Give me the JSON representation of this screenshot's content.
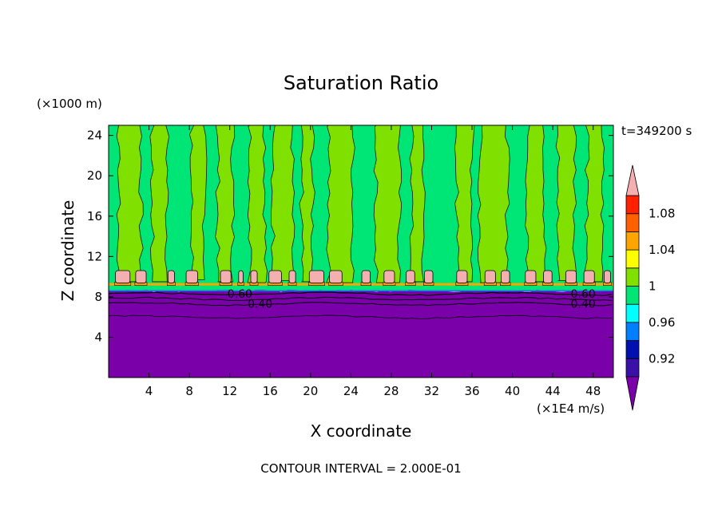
{
  "chart_data": {
    "type": "heatmap",
    "title": "Saturation Ratio",
    "xlabel": "X coordinate",
    "ylabel": "Z coordinate",
    "x_unit": "(×1E4 m/s)",
    "y_unit": "(×1000 m)",
    "time_label": "t=349200 s",
    "footer": "CONTOUR INTERVAL = 2.000E-01",
    "xlim": [
      0,
      50
    ],
    "ylim": [
      0,
      25
    ],
    "x_ticks": [
      "4",
      "8",
      "12",
      "16",
      "20",
      "24",
      "28",
      "32",
      "36",
      "40",
      "44",
      "48"
    ],
    "x_tick_values": [
      4,
      8,
      12,
      16,
      20,
      24,
      28,
      32,
      36,
      40,
      44,
      48
    ],
    "y_ticks": [
      "4",
      "8",
      "12",
      "16",
      "20",
      "24"
    ],
    "y_tick_values": [
      4,
      8,
      12,
      16,
      20,
      24
    ],
    "colorbar": {
      "levels": [
        0.9,
        0.92,
        0.94,
        0.96,
        0.98,
        1.0,
        1.02,
        1.04,
        1.06,
        1.08,
        1.1
      ],
      "labels": [
        "0.92",
        "0.96",
        "1",
        "1.04",
        "1.08"
      ],
      "label_values": [
        0.92,
        0.96,
        1.0,
        1.04,
        1.08
      ],
      "colors": [
        "#7a00aa",
        "#3a10a8",
        "#0010b0",
        "#0080ff",
        "#00ffff",
        "#00e676",
        "#80e000",
        "#ffff00",
        "#ffa500",
        "#ff6000",
        "#ff2000",
        "#f4b0b0"
      ]
    },
    "contour_labels": [
      {
        "text": "0.60",
        "x": 13.0,
        "y": 8.3
      },
      {
        "text": "0.40",
        "x": 15.0,
        "y": 7.3
      },
      {
        "text": "0.60",
        "x": 47.0,
        "y": 8.3
      },
      {
        "text": "0.40",
        "x": 47.0,
        "y": 7.3
      }
    ],
    "cloud_base_height": 9.2,
    "dry_layer_top": 8.6,
    "moist_columns": [
      {
        "x0": 1.0,
        "x1": 3.2,
        "base": 9.5
      },
      {
        "x0": 4.3,
        "x1": 5.8,
        "base": 9.5
      },
      {
        "x0": 8.2,
        "x1": 9.5,
        "base": 9.7
      },
      {
        "x0": 10.8,
        "x1": 12.3,
        "base": 9.5
      },
      {
        "x0": 14.0,
        "x1": 15.5,
        "base": 9.4
      },
      {
        "x0": 16.3,
        "x1": 18.2,
        "base": 9.6
      },
      {
        "x0": 19.1,
        "x1": 20.2,
        "base": 9.5
      },
      {
        "x0": 21.8,
        "x1": 24.2,
        "base": 9.4
      },
      {
        "x0": 26.5,
        "x1": 28.8,
        "base": 9.4
      },
      {
        "x0": 30.0,
        "x1": 31.2,
        "base": 9.5
      },
      {
        "x0": 34.5,
        "x1": 36.0,
        "base": 9.5
      },
      {
        "x0": 36.8,
        "x1": 39.5,
        "base": 9.4
      },
      {
        "x0": 41.5,
        "x1": 43.2,
        "base": 9.5
      },
      {
        "x0": 44.5,
        "x1": 46.2,
        "base": 9.6
      },
      {
        "x0": 47.4,
        "x1": 48.9,
        "base": 9.5
      }
    ],
    "supersat_caps": [
      {
        "x0": 0.6,
        "x1": 2.2
      },
      {
        "x0": 2.6,
        "x1": 3.8
      },
      {
        "x0": 5.8,
        "x1": 6.6
      },
      {
        "x0": 7.6,
        "x1": 8.9
      },
      {
        "x0": 11.0,
        "x1": 12.2
      },
      {
        "x0": 12.8,
        "x1": 13.4
      },
      {
        "x0": 14.0,
        "x1": 14.8
      },
      {
        "x0": 15.8,
        "x1": 17.2
      },
      {
        "x0": 17.8,
        "x1": 18.6
      },
      {
        "x0": 19.8,
        "x1": 21.4
      },
      {
        "x0": 21.8,
        "x1": 23.2
      },
      {
        "x0": 25.0,
        "x1": 26.0
      },
      {
        "x0": 27.2,
        "x1": 28.4
      },
      {
        "x0": 29.4,
        "x1": 30.4
      },
      {
        "x0": 31.2,
        "x1": 32.2
      },
      {
        "x0": 34.4,
        "x1": 35.6
      },
      {
        "x0": 37.2,
        "x1": 38.4
      },
      {
        "x0": 38.8,
        "x1": 39.8
      },
      {
        "x0": 41.2,
        "x1": 42.4
      },
      {
        "x0": 43.0,
        "x1": 44.0
      },
      {
        "x0": 45.2,
        "x1": 46.4
      },
      {
        "x0": 47.0,
        "x1": 48.2
      },
      {
        "x0": 49.0,
        "x1": 49.8
      }
    ]
  }
}
